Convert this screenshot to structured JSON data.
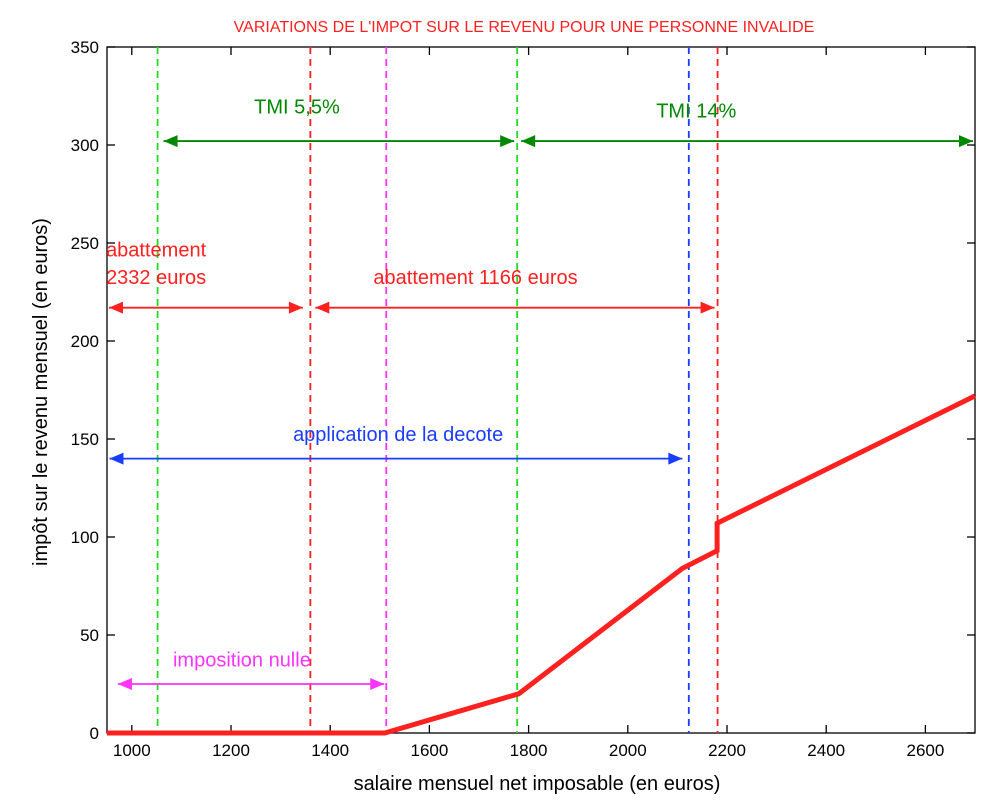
{
  "chart_data": {
    "type": "line",
    "title": "VARIATIONS DE L'IMPOT SUR LE REVENU POUR UNE PERSONNE INVALIDE",
    "xlabel": "salaire mensuel net imposable (en euros)",
    "ylabel": "impôt sur le revenu mensuel (en euros)",
    "xlim": [
      950,
      2700
    ],
    "ylim": [
      0,
      350
    ],
    "xticks": [
      1000,
      1200,
      1400,
      1600,
      1800,
      2000,
      2200,
      2400,
      2600
    ],
    "yticks": [
      0,
      50,
      100,
      150,
      200,
      250,
      300,
      350
    ],
    "grid": false,
    "series": [
      {
        "name": "",
        "color": "#ff2020",
        "x": [
          950,
          1510,
          1780,
          2110,
          2180,
          2180,
          2700
        ],
        "y": [
          0,
          0,
          20,
          84,
          93,
          107,
          172
        ]
      }
    ],
    "vlines": [
      {
        "x": 1052,
        "color": "#22dd22"
      },
      {
        "x": 1360,
        "color": "#ff2020"
      },
      {
        "x": 1513,
        "color": "#ff33ff"
      },
      {
        "x": 1777,
        "color": "#22dd22"
      },
      {
        "x": 2123,
        "color": "#1a3cff"
      },
      {
        "x": 2181,
        "color": "#ff2020"
      }
    ],
    "ranges": [
      {
        "x1": 1060,
        "x2": 1775,
        "y": 302,
        "color": "#008800"
      },
      {
        "x1": 1781,
        "x2": 2700,
        "y": 302,
        "color": "#008800"
      },
      {
        "x1": 950,
        "x2": 1349,
        "y": 217,
        "color": "#ff2020"
      },
      {
        "x1": 1366,
        "x2": 2179,
        "y": 217,
        "color": "#ff2020"
      },
      {
        "x1": 951,
        "x2": 2114,
        "y": 140,
        "color": "#1a3cff"
      },
      {
        "x1": 968,
        "x2": 1513,
        "y": 25,
        "color": "#ff33ff"
      }
    ],
    "annotations": [
      {
        "text": "TMI 5,5%",
        "x": 1333,
        "y": 316,
        "color": "#008800"
      },
      {
        "text": "TMI 14%",
        "x": 2138,
        "y": 314,
        "color": "#008800"
      },
      {
        "text": "abattement",
        "x": 1049,
        "y": 243,
        "color": "#ff2020"
      },
      {
        "text": "2332 euros",
        "x": 1049,
        "y": 229,
        "color": "#ff2020"
      },
      {
        "text": "abattement 1166 euros",
        "x": 1693,
        "y": 229,
        "color": "#ff2020"
      },
      {
        "text": "application de la decote",
        "x": 1537,
        "y": 149,
        "color": "#1a3cff"
      },
      {
        "text": "imposition nulle",
        "x": 1222,
        "y": 34,
        "color": "#ff33ff"
      }
    ]
  }
}
